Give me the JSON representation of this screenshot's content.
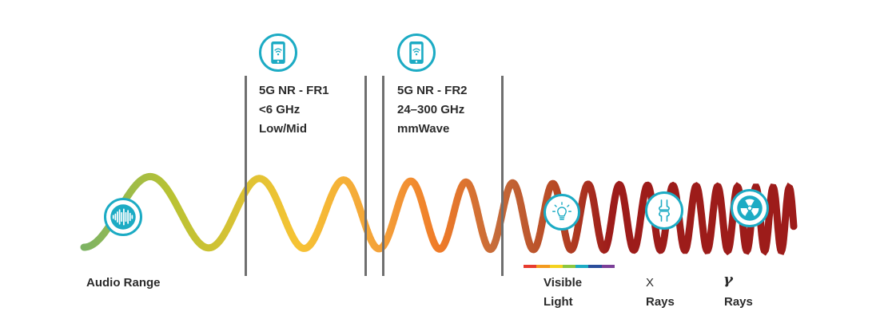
{
  "bands": {
    "fr1": {
      "lines": [
        "5G NR - FR1",
        "<6 GHz",
        "Low/Mid"
      ]
    },
    "fr2": {
      "lines": [
        "5G NR - FR2",
        "24–300 GHz",
        "mmWave"
      ]
    }
  },
  "regions": {
    "audio": "Audio Range",
    "visible": {
      "lines": [
        "Visible",
        "Light"
      ]
    },
    "xray": {
      "lines": [
        "X",
        "Rays"
      ]
    },
    "gamma": {
      "symbol": "γ",
      "lines": [
        "Rays"
      ]
    }
  },
  "icons": {
    "fr1": "smartphone-wifi-icon",
    "fr2": "smartphone-wifi-icon",
    "audio": "sound-wave-icon",
    "visible": "light-bulb-icon",
    "xray": "bone-joint-icon",
    "gamma": "radiation-icon"
  },
  "colors": {
    "accent": "#1cabc4",
    "divider": "#6f6f6f",
    "text": "#2b2b2b",
    "spectrum": [
      "#e73b2e",
      "#f39a1e",
      "#f4d21f",
      "#8cc63f",
      "#1cabc4",
      "#2a4d9b",
      "#7b3f98"
    ],
    "wave": [
      "#7db363",
      "#b8c233",
      "#f6c334",
      "#f4a03a",
      "#ef7a27",
      "#c56b3a",
      "#b84a25",
      "#9d1c1a"
    ]
  }
}
